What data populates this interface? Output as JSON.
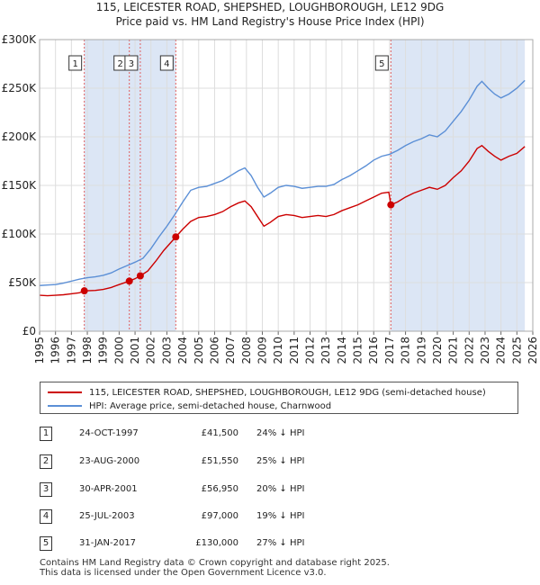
{
  "header": {
    "title_line1": "115, LEICESTER ROAD, SHEPSHED, LOUGHBOROUGH, LE12 9DG",
    "title_line2": "Price paid vs. HM Land Registry's House Price Index (HPI)"
  },
  "colors": {
    "price_paid": "#cc0000",
    "hpi": "#5b8fd6",
    "shade": "#dce6f5",
    "vline": "#e06060"
  },
  "chart_data": {
    "type": "line",
    "title": "Price paid vs. HM Land Registry's House Price Index (HPI)",
    "xlabel": "",
    "ylabel": "",
    "xlim": [
      1995,
      2026
    ],
    "ylim": [
      0,
      300000
    ],
    "y_ticks": [
      {
        "value": 0,
        "label": "£0"
      },
      {
        "value": 50000,
        "label": "£50K"
      },
      {
        "value": 100000,
        "label": "£100K"
      },
      {
        "value": 150000,
        "label": "£150K"
      },
      {
        "value": 200000,
        "label": "£200K"
      },
      {
        "value": 250000,
        "label": "£250K"
      },
      {
        "value": 300000,
        "label": "£300K"
      }
    ],
    "x_ticks": [
      "1995",
      "1996",
      "1997",
      "1998",
      "1999",
      "2000",
      "2001",
      "2002",
      "2003",
      "2004",
      "2005",
      "2006",
      "2007",
      "2008",
      "2009",
      "2010",
      "2011",
      "2012",
      "2013",
      "2014",
      "2015",
      "2016",
      "2017",
      "2018",
      "2019",
      "2020",
      "2021",
      "2022",
      "2023",
      "2024",
      "2025",
      "2026"
    ],
    "shaded_ranges": [
      [
        1997.81,
        2003.56
      ],
      [
        2017.08,
        2025.5
      ]
    ],
    "series": [
      {
        "name": "115, LEICESTER ROAD, SHEPSHED, LOUGHBOROUGH, LE12 9DG (semi-detached house)",
        "color": "#cc0000",
        "points": [
          [
            1995.0,
            37000
          ],
          [
            1995.5,
            36500
          ],
          [
            1996.0,
            37000
          ],
          [
            1996.5,
            37500
          ],
          [
            1997.0,
            38500
          ],
          [
            1997.5,
            39500
          ],
          [
            1997.81,
            41500
          ],
          [
            1998.5,
            42000
          ],
          [
            1999.0,
            43000
          ],
          [
            1999.5,
            45000
          ],
          [
            2000.0,
            48000
          ],
          [
            2000.64,
            51550
          ],
          [
            2001.0,
            54000
          ],
          [
            2001.33,
            56950
          ],
          [
            2001.8,
            62000
          ],
          [
            2002.3,
            72000
          ],
          [
            2002.8,
            83000
          ],
          [
            2003.56,
            97000
          ],
          [
            2004.0,
            105000
          ],
          [
            2004.5,
            113000
          ],
          [
            2005.0,
            117000
          ],
          [
            2005.5,
            118000
          ],
          [
            2006.0,
            120000
          ],
          [
            2006.5,
            123000
          ],
          [
            2007.0,
            128000
          ],
          [
            2007.5,
            132000
          ],
          [
            2007.9,
            134000
          ],
          [
            2008.3,
            128000
          ],
          [
            2008.7,
            118000
          ],
          [
            2009.1,
            108000
          ],
          [
            2009.5,
            112000
          ],
          [
            2010.0,
            118000
          ],
          [
            2010.5,
            120000
          ],
          [
            2011.0,
            119000
          ],
          [
            2011.5,
            117000
          ],
          [
            2012.0,
            118000
          ],
          [
            2012.5,
            119000
          ],
          [
            2013.0,
            118000
          ],
          [
            2013.5,
            120000
          ],
          [
            2014.0,
            124000
          ],
          [
            2014.5,
            127000
          ],
          [
            2015.0,
            130000
          ],
          [
            2015.5,
            134000
          ],
          [
            2016.0,
            138000
          ],
          [
            2016.5,
            142000
          ],
          [
            2016.95,
            143000
          ],
          [
            2017.08,
            130000
          ],
          [
            2017.5,
            133000
          ],
          [
            2018.0,
            138000
          ],
          [
            2018.5,
            142000
          ],
          [
            2019.0,
            145000
          ],
          [
            2019.5,
            148000
          ],
          [
            2020.0,
            146000
          ],
          [
            2020.5,
            150000
          ],
          [
            2021.0,
            158000
          ],
          [
            2021.5,
            165000
          ],
          [
            2022.0,
            175000
          ],
          [
            2022.5,
            188000
          ],
          [
            2022.8,
            191000
          ],
          [
            2023.2,
            185000
          ],
          [
            2023.6,
            180000
          ],
          [
            2024.0,
            176000
          ],
          [
            2024.5,
            180000
          ],
          [
            2025.0,
            183000
          ],
          [
            2025.5,
            190000
          ]
        ]
      },
      {
        "name": "HPI: Average price, semi-detached house, Charnwood",
        "color": "#5b8fd6",
        "points": [
          [
            1995.0,
            47000
          ],
          [
            1995.5,
            47500
          ],
          [
            1996.0,
            48000
          ],
          [
            1996.5,
            49500
          ],
          [
            1997.0,
            51500
          ],
          [
            1997.5,
            53500
          ],
          [
            1998.0,
            55000
          ],
          [
            1998.5,
            56000
          ],
          [
            1999.0,
            57500
          ],
          [
            1999.5,
            60000
          ],
          [
            2000.0,
            64000
          ],
          [
            2000.5,
            67500
          ],
          [
            2001.0,
            71000
          ],
          [
            2001.5,
            75000
          ],
          [
            2002.0,
            85000
          ],
          [
            2002.5,
            97000
          ],
          [
            2003.0,
            108000
          ],
          [
            2003.5,
            120000
          ],
          [
            2004.0,
            133000
          ],
          [
            2004.5,
            145000
          ],
          [
            2005.0,
            148000
          ],
          [
            2005.5,
            149000
          ],
          [
            2006.0,
            152000
          ],
          [
            2006.5,
            155000
          ],
          [
            2007.0,
            160000
          ],
          [
            2007.5,
            165000
          ],
          [
            2007.9,
            168000
          ],
          [
            2008.3,
            160000
          ],
          [
            2008.7,
            148000
          ],
          [
            2009.1,
            138000
          ],
          [
            2009.5,
            142000
          ],
          [
            2010.0,
            148000
          ],
          [
            2010.5,
            150000
          ],
          [
            2011.0,
            149000
          ],
          [
            2011.5,
            147000
          ],
          [
            2012.0,
            148000
          ],
          [
            2012.5,
            149000
          ],
          [
            2013.0,
            149000
          ],
          [
            2013.5,
            151000
          ],
          [
            2014.0,
            156000
          ],
          [
            2014.5,
            160000
          ],
          [
            2015.0,
            165000
          ],
          [
            2015.5,
            170000
          ],
          [
            2016.0,
            176000
          ],
          [
            2016.5,
            180000
          ],
          [
            2017.0,
            182000
          ],
          [
            2017.5,
            186000
          ],
          [
            2018.0,
            191000
          ],
          [
            2018.5,
            195000
          ],
          [
            2019.0,
            198000
          ],
          [
            2019.5,
            202000
          ],
          [
            2020.0,
            200000
          ],
          [
            2020.5,
            206000
          ],
          [
            2021.0,
            216000
          ],
          [
            2021.5,
            226000
          ],
          [
            2022.0,
            238000
          ],
          [
            2022.5,
            252000
          ],
          [
            2022.8,
            257000
          ],
          [
            2023.2,
            250000
          ],
          [
            2023.6,
            244000
          ],
          [
            2024.0,
            240000
          ],
          [
            2024.5,
            244000
          ],
          [
            2025.0,
            250000
          ],
          [
            2025.5,
            258000
          ]
        ]
      }
    ],
    "markers": [
      {
        "label": "1",
        "x": 1997.81,
        "y": 41500
      },
      {
        "label": "2",
        "x": 2000.64,
        "y": 51550
      },
      {
        "label": "3",
        "x": 2001.33,
        "y": 56950
      },
      {
        "label": "4",
        "x": 2003.56,
        "y": 97000
      },
      {
        "label": "5",
        "x": 2017.08,
        "y": 130000
      }
    ]
  },
  "legend": {
    "price_paid_label": "115, LEICESTER ROAD, SHEPSHED, LOUGHBOROUGH, LE12 9DG (semi-detached house)",
    "hpi_label": "HPI: Average price, semi-detached house, Charnwood"
  },
  "transactions": [
    {
      "num": "1",
      "date": "24-OCT-1997",
      "price": "£41,500",
      "hpi": "24% ↓ HPI"
    },
    {
      "num": "2",
      "date": "23-AUG-2000",
      "price": "£51,550",
      "hpi": "25% ↓ HPI"
    },
    {
      "num": "3",
      "date": "30-APR-2001",
      "price": "£56,950",
      "hpi": "20% ↓ HPI"
    },
    {
      "num": "4",
      "date": "25-JUL-2003",
      "price": "£97,000",
      "hpi": "19% ↓ HPI"
    },
    {
      "num": "5",
      "date": "31-JAN-2017",
      "price": "£130,000",
      "hpi": "27% ↓ HPI"
    }
  ],
  "footer": {
    "line1": "Contains HM Land Registry data © Crown copyright and database right 2025.",
    "line2": "This data is licensed under the Open Government Licence v3.0."
  }
}
